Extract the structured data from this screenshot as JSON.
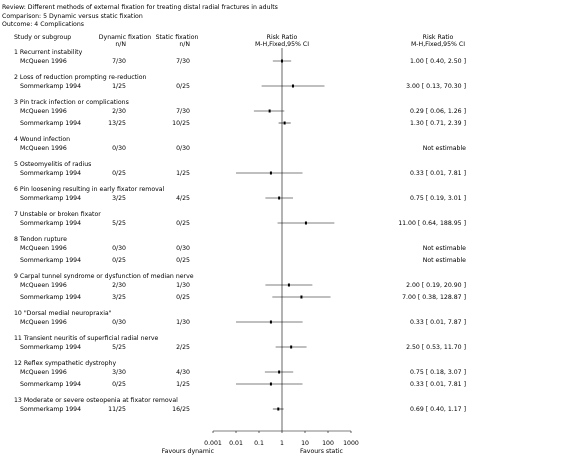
{
  "header": {
    "review": "Review:  Different methods of external fixation for treating distal radial fractures in adults",
    "comparison": "Comparison:  5 Dynamic versus static fixation",
    "outcome": "Outcome:  4 Complications"
  },
  "columns": {
    "study": "Study or subgroup",
    "dynamic": "Dynamic fixation",
    "dynamic_n": "n/N",
    "static": "Static fixation",
    "static_n": "n/N",
    "plot_title": "Risk Ratio",
    "plot_method": "M-H,Fixed,95% CI",
    "rr_title": "Risk Ratio",
    "rr_method": "M-H,Fixed,95% CI"
  },
  "groups": [
    {
      "label": "1 Recurrent instability",
      "rows": [
        {
          "study": "McQueen 1996",
          "dynamic": "7/30",
          "static": "7/30",
          "ci": "1.00 [ 0.40, 2.50 ]",
          "rr": 1.0,
          "lo": 0.4,
          "hi": 2.5
        }
      ]
    },
    {
      "label": "2 Loss of reduction prompting re-reduction",
      "rows": [
        {
          "study": "Sommerkamp 1994",
          "dynamic": "1/25",
          "static": "0/25",
          "ci": "3.00 [ 0.13, 70.30 ]",
          "rr": 3.0,
          "lo": 0.13,
          "hi": 70.3
        }
      ]
    },
    {
      "label": "3 Pin track infection or complications",
      "rows": [
        {
          "study": "McQueen 1996",
          "dynamic": "2/30",
          "static": "7/30",
          "ci": "0.29 [ 0.06, 1.26 ]",
          "rr": 0.29,
          "lo": 0.06,
          "hi": 1.26
        },
        {
          "study": "Sommerkamp 1994",
          "dynamic": "13/25",
          "static": "10/25",
          "ci": "1.30 [ 0.71, 2.39 ]",
          "rr": 1.3,
          "lo": 0.71,
          "hi": 2.39
        }
      ]
    },
    {
      "label": "4 Wound infection",
      "rows": [
        {
          "study": "McQueen 1996",
          "dynamic": "0/30",
          "static": "0/30",
          "ci": "Not estimable",
          "rr": null,
          "lo": null,
          "hi": null
        }
      ]
    },
    {
      "label": "5 Osteomyelitis of radius",
      "rows": [
        {
          "study": "Sommerkamp 1994",
          "dynamic": "0/25",
          "static": "1/25",
          "ci": "0.33 [ 0.01, 7.81 ]",
          "rr": 0.33,
          "lo": 0.01,
          "hi": 7.81
        }
      ]
    },
    {
      "label": "6 Pin loosening resulting in early fixator removal",
      "rows": [
        {
          "study": "Sommerkamp 1994",
          "dynamic": "3/25",
          "static": "4/25",
          "ci": "0.75 [ 0.19, 3.01 ]",
          "rr": 0.75,
          "lo": 0.19,
          "hi": 3.01
        }
      ]
    },
    {
      "label": "7 Unstable or broken fixator",
      "rows": [
        {
          "study": "Sommerkamp 1994",
          "dynamic": "5/25",
          "static": "0/25",
          "ci": "11.00 [ 0.64, 188.95 ]",
          "rr": 11.0,
          "lo": 0.64,
          "hi": 188.95
        }
      ]
    },
    {
      "label": "8 Tendon rupture",
      "rows": [
        {
          "study": "McQueen 1996",
          "dynamic": "0/30",
          "static": "0/30",
          "ci": "Not estimable",
          "rr": null,
          "lo": null,
          "hi": null
        },
        {
          "study": "Sommerkamp 1994",
          "dynamic": "0/25",
          "static": "0/25",
          "ci": "Not estimable",
          "rr": null,
          "lo": null,
          "hi": null
        }
      ]
    },
    {
      "label": "9 Carpal tunnel syndrome or dysfunction of median nerve",
      "rows": [
        {
          "study": "McQueen 1996",
          "dynamic": "2/30",
          "static": "1/30",
          "ci": "2.00 [ 0.19, 20.90 ]",
          "rr": 2.0,
          "lo": 0.19,
          "hi": 20.9
        },
        {
          "study": "Sommerkamp 1994",
          "dynamic": "3/25",
          "static": "0/25",
          "ci": "7.00 [ 0.38, 128.87 ]",
          "rr": 7.0,
          "lo": 0.38,
          "hi": 128.87
        }
      ]
    },
    {
      "label": "10 \"Dorsal medial neuropraxia\"",
      "rows": [
        {
          "study": "McQueen 1996",
          "dynamic": "0/30",
          "static": "1/30",
          "ci": "0.33 [ 0.01, 7.87 ]",
          "rr": 0.33,
          "lo": 0.01,
          "hi": 7.87
        }
      ]
    },
    {
      "label": "11 Transient neuritis of superficial radial nerve",
      "rows": [
        {
          "study": "Sommerkamp 1994",
          "dynamic": "5/25",
          "static": "2/25",
          "ci": "2.50 [ 0.53, 11.70 ]",
          "rr": 2.5,
          "lo": 0.53,
          "hi": 11.7
        }
      ]
    },
    {
      "label": "12 Reflex sympathetic dystrophy",
      "rows": [
        {
          "study": "McQueen 1996",
          "dynamic": "3/30",
          "static": "4/30",
          "ci": "0.75 [ 0.18, 3.07 ]",
          "rr": 0.75,
          "lo": 0.18,
          "hi": 3.07
        },
        {
          "study": "Sommerkamp 1994",
          "dynamic": "0/25",
          "static": "1/25",
          "ci": "0.33 [ 0.01, 7.81 ]",
          "rr": 0.33,
          "lo": 0.01,
          "hi": 7.81
        }
      ]
    },
    {
      "label": "13 Moderate or severe osteopenia at fixator removal",
      "rows": [
        {
          "study": "Sommerkamp 1994",
          "dynamic": "11/25",
          "static": "16/25",
          "ci": "0.69 [ 0.40, 1.17 ]",
          "rr": 0.69,
          "lo": 0.4,
          "hi": 1.17
        }
      ]
    }
  ],
  "axis": {
    "log": true,
    "xlim": [
      0.001,
      1000
    ],
    "xticks": [
      0.001,
      0.01,
      0.1,
      1,
      10,
      100,
      1000
    ],
    "favours_left": "Favours dynamic",
    "favours_right": "Favours static"
  }
}
